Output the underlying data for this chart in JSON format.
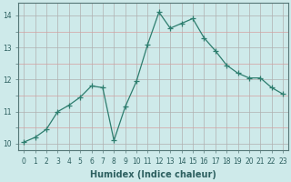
{
  "x": [
    0,
    1,
    2,
    3,
    4,
    5,
    6,
    7,
    8,
    9,
    10,
    11,
    12,
    13,
    14,
    15,
    16,
    17,
    18,
    19,
    20,
    21,
    22,
    23
  ],
  "y": [
    10.05,
    10.2,
    10.45,
    11.0,
    11.2,
    11.45,
    11.8,
    11.75,
    10.1,
    11.15,
    11.95,
    13.1,
    14.1,
    13.6,
    13.75,
    13.9,
    13.3,
    12.9,
    12.45,
    12.2,
    12.05,
    12.05,
    11.75,
    11.55
  ],
  "line_color": "#2d7d6e",
  "marker": "+",
  "marker_size": 4,
  "xlabel": "Humidex (Indice chaleur)",
  "xlim": [
    -0.5,
    23.5
  ],
  "ylim": [
    9.8,
    14.4
  ],
  "xtick_labels": [
    "0",
    "1",
    "2",
    "3",
    "4",
    "5",
    "6",
    "7",
    "8",
    "9",
    "10",
    "11",
    "12",
    "13",
    "14",
    "15",
    "16",
    "17",
    "18",
    "19",
    "20",
    "21",
    "22",
    "23"
  ],
  "yticks": [
    10,
    11,
    12,
    13,
    14
  ],
  "bg_color": "#ceeaea",
  "grid_color_major_x": "#b0b0b0",
  "grid_color_major_y": "#b0b0b0",
  "grid_color_minor_y": "#d4a0a0",
  "grid_color_minor_x": "#b8b8b8",
  "label_fontsize": 7,
  "tick_fontsize": 5.5,
  "linewidth": 0.9
}
